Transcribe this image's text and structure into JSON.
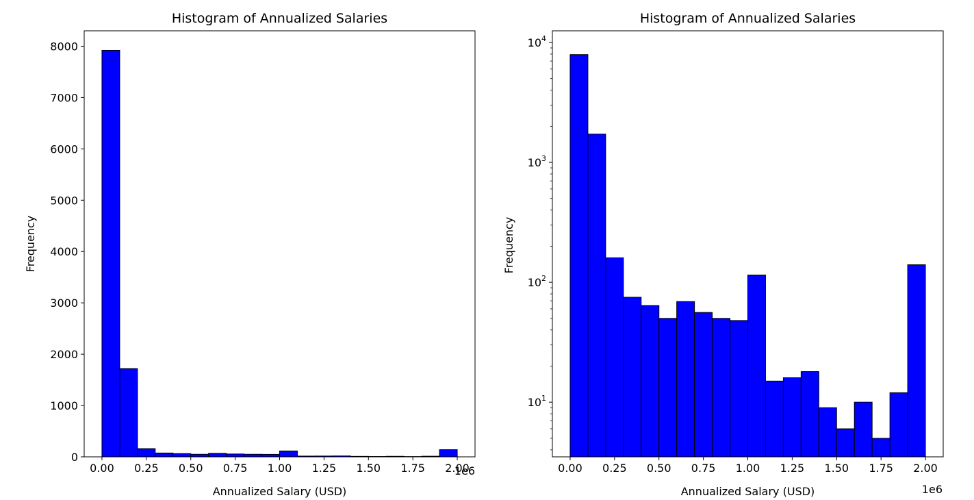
{
  "chart_data": [
    {
      "type": "bar",
      "title": "Histogram of Annualized Salaries",
      "xlabel": "Annualized Salary (USD)",
      "ylabel": "Frequency",
      "x_offset_label": "1e6",
      "xlim": [
        -0.1,
        2.1
      ],
      "ylim": [
        0,
        8300
      ],
      "yscale": "linear",
      "grid": false,
      "bar_color": "#0000ff",
      "edge_color": "#000000",
      "bin_edges": [
        0.0,
        0.1,
        0.2,
        0.3,
        0.4,
        0.5,
        0.6,
        0.7,
        0.8,
        0.9,
        1.0,
        1.1,
        1.2,
        1.3,
        1.4,
        1.5,
        1.6,
        1.7,
        1.8,
        1.9,
        2.0
      ],
      "values": [
        7920,
        1720,
        160,
        75,
        64,
        50,
        69,
        56,
        50,
        48,
        115,
        15,
        16,
        18,
        9,
        6,
        10,
        5,
        12,
        140
      ],
      "x_ticks": [
        0.0,
        0.25,
        0.5,
        0.75,
        1.0,
        1.25,
        1.5,
        1.75,
        2.0
      ],
      "x_tick_labels": [
        "0.00",
        "0.25",
        "0.50",
        "0.75",
        "1.00",
        "1.25",
        "1.50",
        "1.75",
        "2.00"
      ],
      "y_ticks": [
        0,
        1000,
        2000,
        3000,
        4000,
        5000,
        6000,
        7000,
        8000
      ],
      "y_tick_labels": [
        "0",
        "1000",
        "2000",
        "3000",
        "4000",
        "5000",
        "6000",
        "7000",
        "8000"
      ]
    },
    {
      "type": "bar",
      "title": "Histogram of Annualized Salaries",
      "xlabel": "Annualized Salary (USD)",
      "ylabel": "Frequency",
      "x_offset_label": "1e6",
      "xlim": [
        -0.1,
        2.1
      ],
      "ylim": [
        3.5,
        12500
      ],
      "yscale": "log",
      "grid": false,
      "bar_color": "#0000ff",
      "edge_color": "#000000",
      "bin_edges": [
        0.0,
        0.1,
        0.2,
        0.3,
        0.4,
        0.5,
        0.6,
        0.7,
        0.8,
        0.9,
        1.0,
        1.1,
        1.2,
        1.3,
        1.4,
        1.5,
        1.6,
        1.7,
        1.8,
        1.9,
        2.0
      ],
      "values": [
        7920,
        1720,
        160,
        75,
        64,
        50,
        69,
        56,
        50,
        48,
        115,
        15,
        16,
        18,
        9,
        6,
        10,
        5,
        12,
        140
      ],
      "x_ticks": [
        0.0,
        0.25,
        0.5,
        0.75,
        1.0,
        1.25,
        1.5,
        1.75,
        2.0
      ],
      "x_tick_labels": [
        "0.00",
        "0.25",
        "0.50",
        "0.75",
        "1.00",
        "1.25",
        "1.50",
        "1.75",
        "2.00"
      ],
      "y_ticks": [
        10,
        100,
        1000,
        10000
      ],
      "y_tick_labels": [
        [
          "10",
          "1"
        ],
        [
          "10",
          "2"
        ],
        [
          "10",
          "3"
        ],
        [
          "10",
          "4"
        ]
      ]
    }
  ]
}
